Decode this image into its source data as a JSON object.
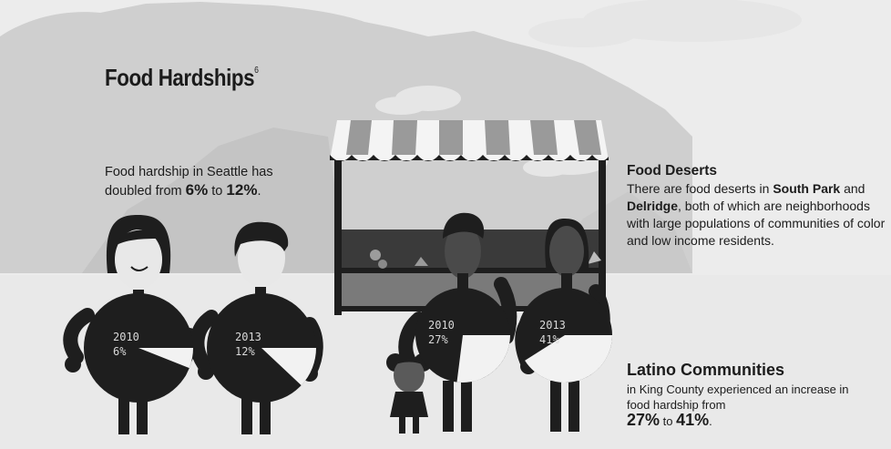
{
  "title": {
    "text": "Food Hardships",
    "footnote": "6"
  },
  "intro": {
    "line1": "Food hardship in Seattle has",
    "line2_prefix": "doubled from ",
    "value_from": "6%",
    "connector": " to ",
    "value_to": "12%",
    "suffix": "."
  },
  "figures": [
    {
      "year": "2010",
      "percent": "6%",
      "share": 0.06
    },
    {
      "year": "2013",
      "percent": "12%",
      "share": 0.12
    },
    {
      "year": "2010",
      "percent": "27%",
      "share": 0.27
    },
    {
      "year": "2013",
      "percent": "41%",
      "share": 0.41
    }
  ],
  "deserts": {
    "heading": "Food Deserts",
    "t1": "There are food deserts in ",
    "place1": "South Park",
    "t2": " and ",
    "place2": "Delridge",
    "t3": ", both of which are neighborhoods with large populations of communities of color and low income residents."
  },
  "latino": {
    "heading": "Latino Communities",
    "line1": "in King County experienced an increase in food hardship from",
    "value_from": "27%",
    "connector": " to ",
    "value_to": "41%",
    "suffix": "."
  },
  "colors": {
    "background": "#ececec",
    "mountains": "#cfcfcf",
    "figures": "#1e1e1e",
    "awning_stripe": "#9a9a9a"
  }
}
